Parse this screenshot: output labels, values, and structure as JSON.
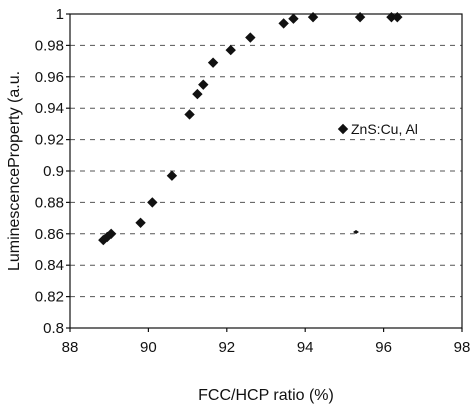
{
  "chart_data": {
    "type": "scatter",
    "title": "",
    "xlabel": "FCC/HCP ratio (%)",
    "ylabel": "LuminescenceProperty (a.u.",
    "xlim": [
      88,
      98
    ],
    "ylim": [
      0.8,
      1.0
    ],
    "x_ticks": [
      "88",
      "90",
      "92",
      "94",
      "96",
      "98"
    ],
    "y_ticks": [
      "0.8",
      "0.82",
      "0.84",
      "0.86",
      "0.88",
      "0.9",
      "0.92",
      "0.94",
      "0.96",
      "0.98",
      "1"
    ],
    "grid": "horizontal dashed",
    "legend_position": "right",
    "series": [
      {
        "name": "ZnS:Cu, Al",
        "marker": "diamond",
        "color": "#111111",
        "points": [
          {
            "x": 88.85,
            "y": 0.856
          },
          {
            "x": 88.95,
            "y": 0.858
          },
          {
            "x": 89.05,
            "y": 0.86
          },
          {
            "x": 89.8,
            "y": 0.867
          },
          {
            "x": 90.1,
            "y": 0.88
          },
          {
            "x": 90.6,
            "y": 0.897
          },
          {
            "x": 91.05,
            "y": 0.936
          },
          {
            "x": 91.25,
            "y": 0.949
          },
          {
            "x": 91.4,
            "y": 0.955
          },
          {
            "x": 91.65,
            "y": 0.969
          },
          {
            "x": 92.1,
            "y": 0.977
          },
          {
            "x": 92.6,
            "y": 0.985
          },
          {
            "x": 93.45,
            "y": 0.994
          },
          {
            "x": 93.7,
            "y": 0.997
          },
          {
            "x": 94.2,
            "y": 0.998
          },
          {
            "x": 95.4,
            "y": 0.998
          },
          {
            "x": 96.2,
            "y": 0.998
          },
          {
            "x": 96.35,
            "y": 0.998
          }
        ]
      }
    ]
  }
}
